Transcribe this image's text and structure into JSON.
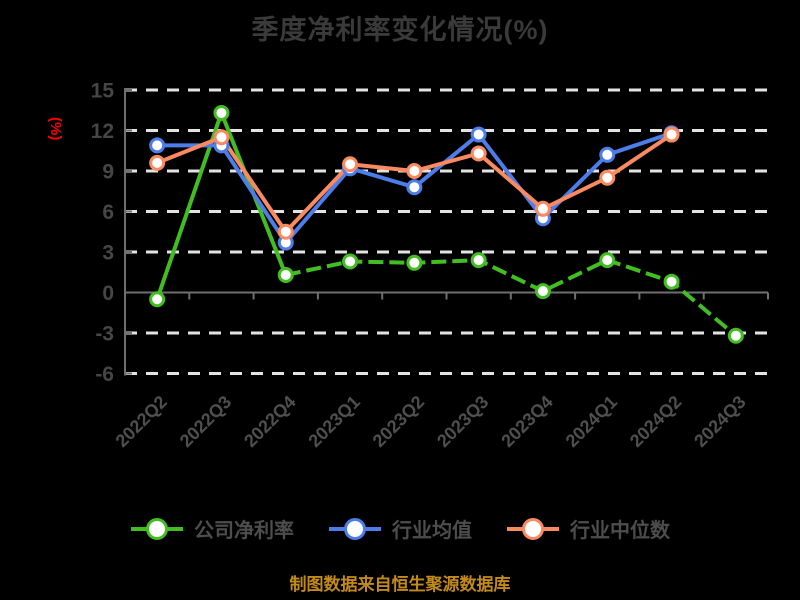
{
  "header": {
    "title": "季度净利率变化情况(%)"
  },
  "caption": {
    "text": "制图数据来自恒生聚源数据库"
  },
  "palette": {
    "background": "#000000",
    "title_text": "#3A3A3A",
    "ylabel_text": "#FF0000",
    "tick_text": "#464646",
    "xlabel_text": "#4F4F4F",
    "legend_text": "#4D4D4D",
    "caption_text": "#C28A1A",
    "grid": "#E3E3E3",
    "axis": "#6F6F6F",
    "marker_fill": "#FFFFFF"
  },
  "chart_data": {
    "type": "line",
    "title": "季度净利率变化情况(%)",
    "xlabel": "",
    "ylabel": "(%)",
    "categories": [
      "2022Q2",
      "2022Q3",
      "2022Q4",
      "2023Q1",
      "2023Q2",
      "2023Q3",
      "2023Q4",
      "2024Q1",
      "2024Q2",
      "2024Q3"
    ],
    "series": [
      {
        "name": "公司净利率",
        "color": "#43BE22",
        "dash_from": 2,
        "values": [
          -0.5,
          13.3,
          1.3,
          2.3,
          2.2,
          2.4,
          0.1,
          2.4,
          0.8,
          -3.2
        ]
      },
      {
        "name": "行业均值",
        "color": "#4C7DE8",
        "dash_from": null,
        "values": [
          10.9,
          10.9,
          3.7,
          9.2,
          7.8,
          11.7,
          5.5,
          10.2,
          11.8,
          null
        ]
      },
      {
        "name": "行业中位数",
        "color": "#FC8A61",
        "dash_from": null,
        "values": [
          9.6,
          11.5,
          4.5,
          9.5,
          9.0,
          10.3,
          6.2,
          8.5,
          11.7,
          null
        ]
      }
    ],
    "y_ticks": [
      15,
      12,
      9,
      6,
      3,
      0,
      -3,
      -6
    ],
    "ylim": [
      -6,
      15
    ],
    "grid": "horizontal-dashed",
    "legend_position": "bottom"
  }
}
